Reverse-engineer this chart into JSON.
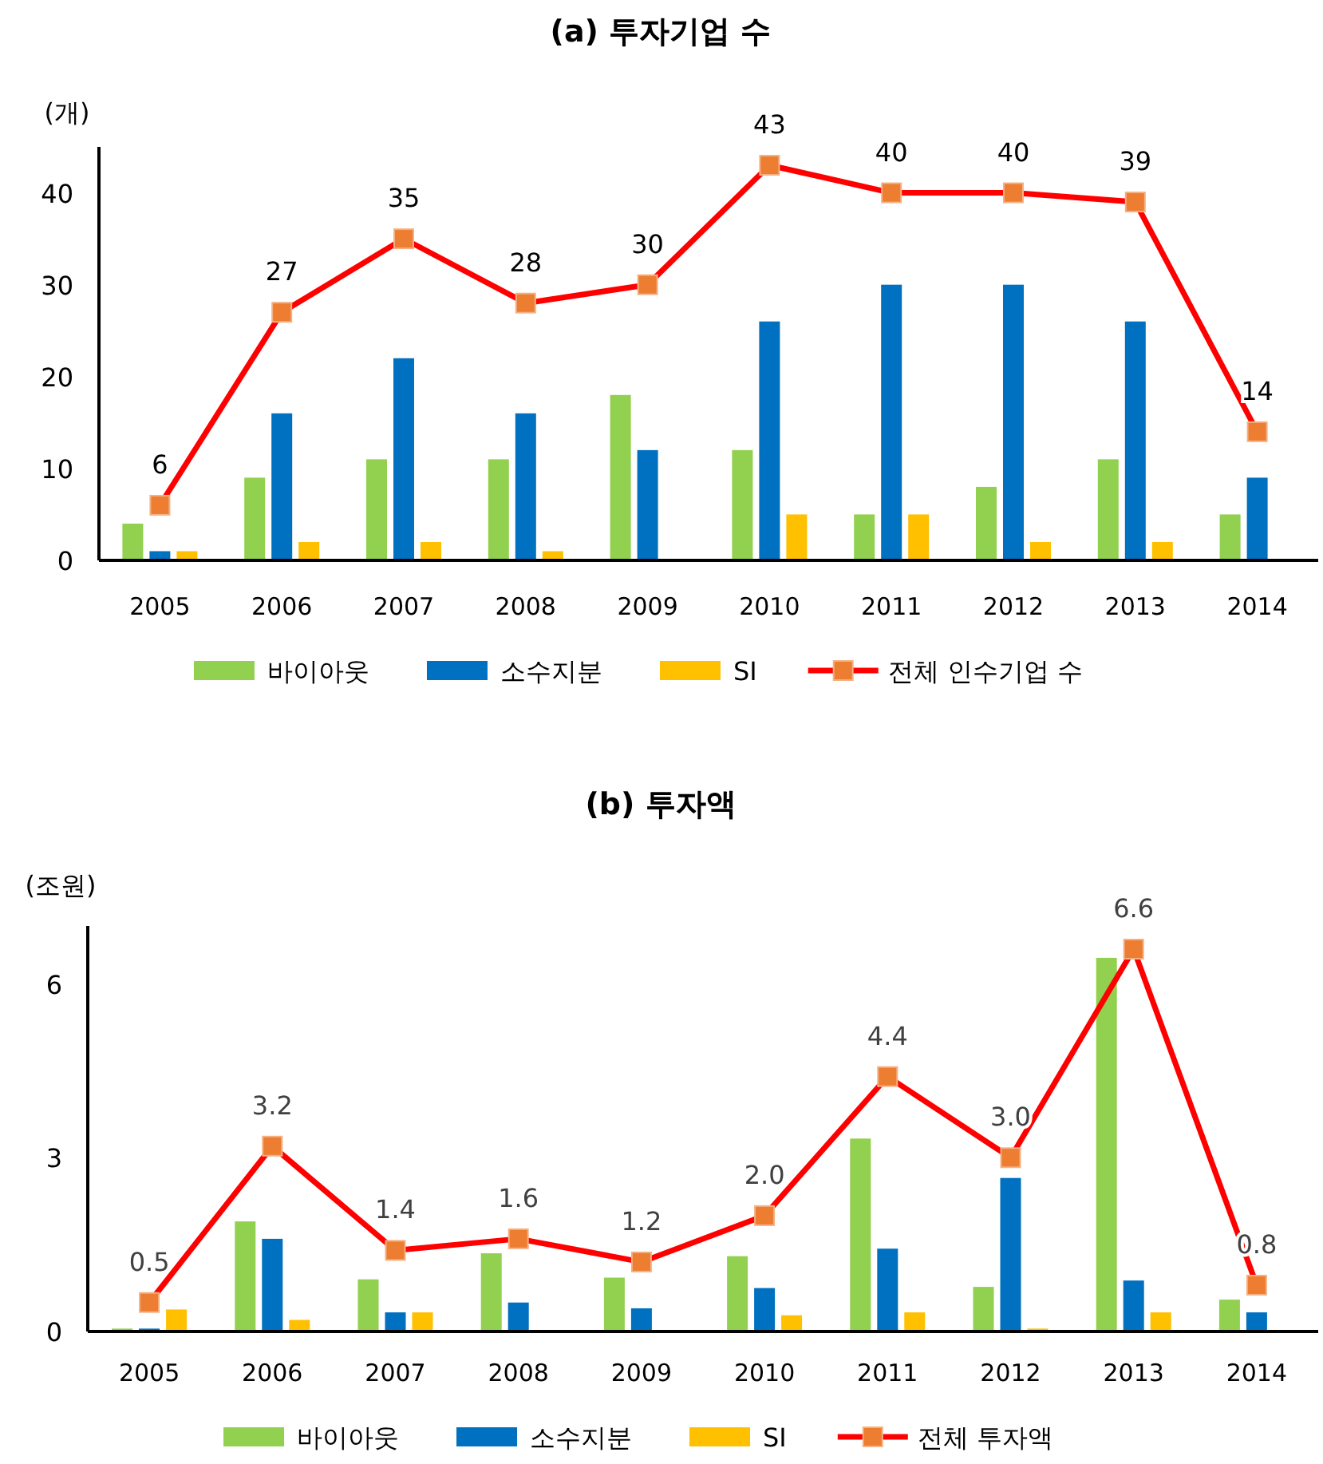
{
  "chart_data": [
    {
      "type": "bar",
      "title": "(a) 투자기업 수",
      "ylabel": "(개)",
      "categories": [
        "2005",
        "2006",
        "2007",
        "2008",
        "2009",
        "2010",
        "2011",
        "2012",
        "2013",
        "2014"
      ],
      "series": [
        {
          "name": "바이아웃",
          "color": "#92d050",
          "values": [
            4,
            9,
            11,
            11,
            18,
            12,
            5,
            8,
            11,
            5
          ]
        },
        {
          "name": "소수지분",
          "color": "#0070c0",
          "values": [
            1,
            16,
            22,
            16,
            12,
            26,
            30,
            30,
            26,
            9
          ]
        },
        {
          "name": "SI",
          "color": "#ffc000",
          "values": [
            1,
            2,
            2,
            1,
            0,
            5,
            5,
            2,
            2,
            0
          ]
        },
        {
          "name": "전체 인수기업 수",
          "type": "line",
          "color": "#ff0000",
          "marker": "square",
          "values": [
            6,
            27,
            35,
            28,
            30,
            43,
            40,
            40,
            39,
            14
          ],
          "value_labels": [
            "6",
            "27",
            "35",
            "28",
            "30",
            "43",
            "40",
            "40",
            "39",
            "14"
          ]
        }
      ],
      "ylim": [
        0,
        45
      ],
      "yticks": [
        0,
        10,
        20,
        30,
        40
      ],
      "grid": false,
      "legend": "bottom"
    },
    {
      "type": "bar",
      "title": "(b) 투자액",
      "ylabel": "(조원)",
      "categories": [
        "2005",
        "2006",
        "2007",
        "2008",
        "2009",
        "2010",
        "2011",
        "2012",
        "2013",
        "2014"
      ],
      "series": [
        {
          "name": "바이아웃",
          "color": "#92d050",
          "values": [
            0.05,
            1.9,
            0.9,
            1.35,
            0.93,
            1.3,
            3.33,
            0.77,
            6.45,
            0.55
          ]
        },
        {
          "name": "소수지분",
          "color": "#0070c0",
          "values": [
            0.05,
            1.6,
            0.33,
            0.5,
            0.4,
            0.75,
            1.43,
            2.65,
            0.88,
            0.33
          ]
        },
        {
          "name": "SI",
          "color": "#ffc000",
          "values": [
            0.38,
            0.2,
            0.33,
            0,
            null,
            0.28,
            0.33,
            0.05,
            0.33,
            0
          ]
        },
        {
          "name": "전체 투자액",
          "type": "line",
          "color": "#ff0000",
          "marker": "square",
          "values": [
            0.5,
            3.2,
            1.4,
            1.6,
            1.2,
            2.0,
            4.4,
            3.0,
            6.6,
            0.8
          ],
          "value_labels": [
            "0.5",
            "3.2",
            "1.4",
            "1.6",
            "1.2",
            "2.0",
            "4.4",
            "3.0",
            "6.6",
            "0.8"
          ]
        }
      ],
      "ylim": [
        0,
        7
      ],
      "yticks": [
        0,
        3,
        6
      ],
      "grid": false,
      "legend": "bottom"
    }
  ]
}
